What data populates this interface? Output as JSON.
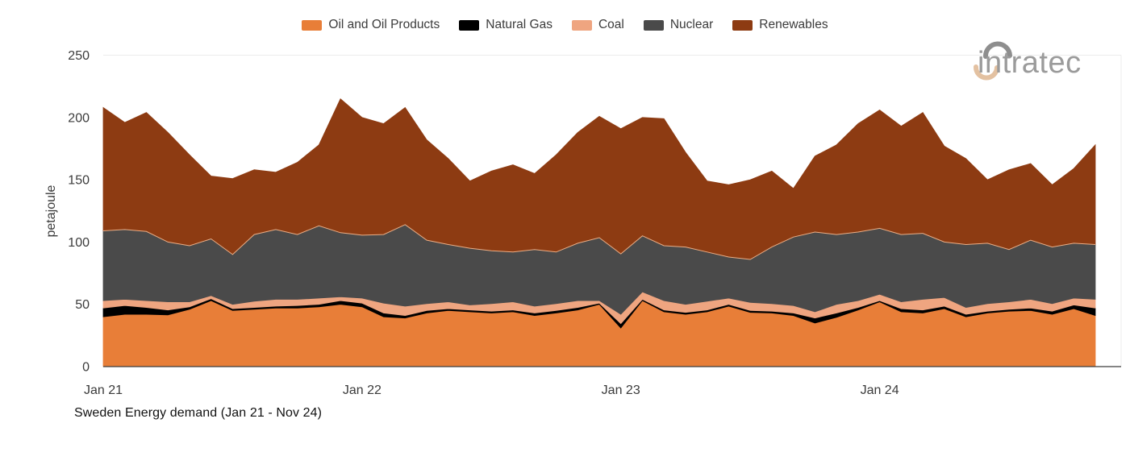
{
  "logo": {
    "brand": "intratec"
  },
  "chart_data": {
    "type": "area",
    "stacked": true,
    "title": "Sweden Energy demand (Jan 21 - Nov 24)",
    "ylabel": "petajoule",
    "unit": "petajoule",
    "ylim": [
      0,
      250
    ],
    "y_ticks": [
      0,
      50,
      100,
      150,
      200,
      250
    ],
    "grid": "top-line-only",
    "legend_position": "top",
    "x_tick_labels": [
      "Jan 21",
      "Jan 22",
      "Jan 23",
      "Jan 24"
    ],
    "x_tick_month_indices": [
      0,
      12,
      24,
      36
    ],
    "months": [
      "Jan 21",
      "Feb 21",
      "Mar 21",
      "Apr 21",
      "May 21",
      "Jun 21",
      "Jul 21",
      "Aug 21",
      "Sep 21",
      "Oct 21",
      "Nov 21",
      "Dec 21",
      "Jan 22",
      "Feb 22",
      "Mar 22",
      "Apr 22",
      "May 22",
      "Jun 22",
      "Jul 22",
      "Aug 22",
      "Sep 22",
      "Oct 22",
      "Nov 22",
      "Dec 22",
      "Jan 23",
      "Feb 23",
      "Mar 23",
      "Apr 23",
      "May 23",
      "Jun 23",
      "Jul 23",
      "Aug 23",
      "Sep 23",
      "Oct 23",
      "Nov 23",
      "Dec 23",
      "Jan 24",
      "Feb 24",
      "Mar 24",
      "Apr 24",
      "May 24",
      "Jun 24",
      "Jul 24",
      "Aug 24",
      "Sep 24",
      "Oct 24",
      "Nov 24"
    ],
    "series": [
      {
        "name": "Oil and Oil Products",
        "color": "#e87e38",
        "values": [
          40,
          42,
          42,
          41.5,
          46,
          53,
          45,
          46,
          47,
          47,
          48,
          50,
          48,
          40,
          39,
          43,
          45,
          44,
          43,
          44,
          41,
          43,
          45.5,
          50,
          31,
          53,
          44,
          42,
          44,
          48.5,
          43.5,
          43,
          41,
          35,
          39.5,
          45.5,
          52,
          44,
          43,
          46.5,
          40,
          43,
          44.5,
          45,
          42,
          46.5,
          41
        ]
      },
      {
        "name": "Natural Gas",
        "color": "#000000",
        "values": [
          7,
          7,
          5.5,
          4,
          2,
          1.5,
          1.5,
          1.5,
          1.5,
          2,
          2,
          3,
          3,
          3,
          2,
          2,
          1.5,
          1.5,
          1.5,
          1.5,
          2,
          2,
          2,
          1,
          3.5,
          1,
          1.5,
          1.5,
          1.5,
          1.5,
          1.5,
          1.5,
          2,
          4,
          3.5,
          2,
          1,
          2.5,
          2.5,
          2,
          2,
          1.5,
          1.5,
          2,
          2.5,
          3,
          6
        ]
      },
      {
        "name": "Coal",
        "color": "#efa580",
        "values": [
          6,
          5,
          5.5,
          6.5,
          4,
          2.5,
          3.5,
          5,
          5.5,
          5,
          5,
          3,
          4,
          8,
          7.5,
          5.5,
          5.5,
          4,
          6,
          6.5,
          5.5,
          5.5,
          5.5,
          2,
          7.5,
          6,
          7.5,
          6.5,
          7,
          5,
          6.5,
          6,
          6,
          5,
          7,
          5.5,
          5,
          5.5,
          8.5,
          7,
          5.5,
          6,
          6,
          7,
          6,
          5.5,
          7
        ]
      },
      {
        "name": "Nuclear",
        "color": "#4a4a4a",
        "values": [
          56,
          56,
          55.5,
          48,
          45,
          45.5,
          40,
          53.5,
          56,
          52,
          58,
          51.5,
          50.5,
          55,
          65.5,
          51,
          46,
          45.5,
          42.5,
          40,
          45.5,
          41.5,
          46,
          50.5,
          48.5,
          45,
          44,
          46,
          39.5,
          33,
          34.5,
          45.5,
          55,
          64,
          56,
          55,
          53,
          54,
          53,
          44.5,
          50.5,
          48.5,
          42,
          47.5,
          45.5,
          44,
          44
        ]
      },
      {
        "name": "Renewables",
        "color": "#8d3b12",
        "values": [
          99,
          86,
          95.5,
          88,
          73,
          50.5,
          61,
          52,
          46,
          58,
          65,
          107.5,
          94.5,
          89,
          94,
          80.5,
          69,
          54,
          64,
          70,
          61,
          78,
          89,
          97.5,
          100.5,
          95,
          102,
          76,
          57,
          58,
          64,
          61,
          39,
          61,
          72,
          87,
          95,
          87,
          97,
          77,
          69,
          51,
          64,
          61.5,
          50,
          60,
          80
        ]
      }
    ],
    "style": {
      "nuclear_top_stroke": "#e8ae88",
      "axis_line_color": "#3c3c3c",
      "grid_line_color": "#ececec",
      "tick_label_color": "#3b3b3b"
    }
  }
}
